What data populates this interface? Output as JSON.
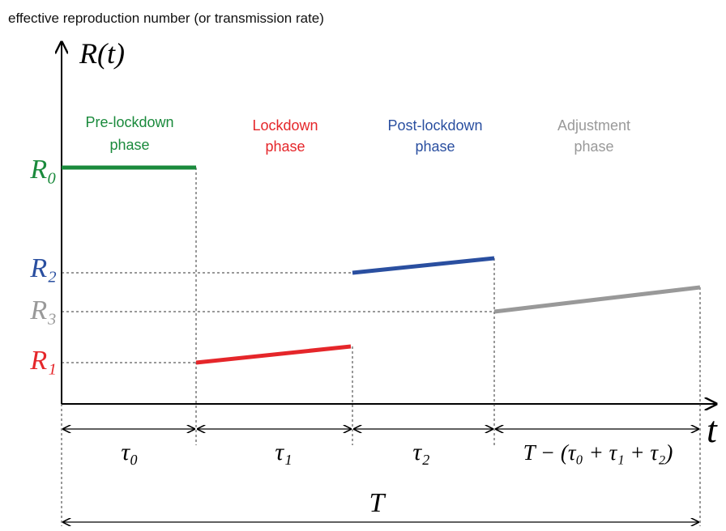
{
  "title": "effective reproduction number (or transmission rate)",
  "y_axis_label": "R(t)",
  "x_axis_label": "t",
  "phases": [
    {
      "lines": [
        "Pre-lockdown",
        "phase"
      ]
    },
    {
      "lines": [
        "Lockdown",
        "phase"
      ]
    },
    {
      "lines": [
        "Post-lockdown",
        "phase"
      ]
    },
    {
      "lines": [
        "Adjustment",
        "phase"
      ]
    }
  ],
  "levels": [
    "R₀",
    "R₂",
    "R₃",
    "R₁"
  ],
  "durations": [
    "τ₀",
    "τ₁",
    "τ₂",
    "T − (τ₀ + τ₁ + τ₂)"
  ],
  "total": "T"
}
